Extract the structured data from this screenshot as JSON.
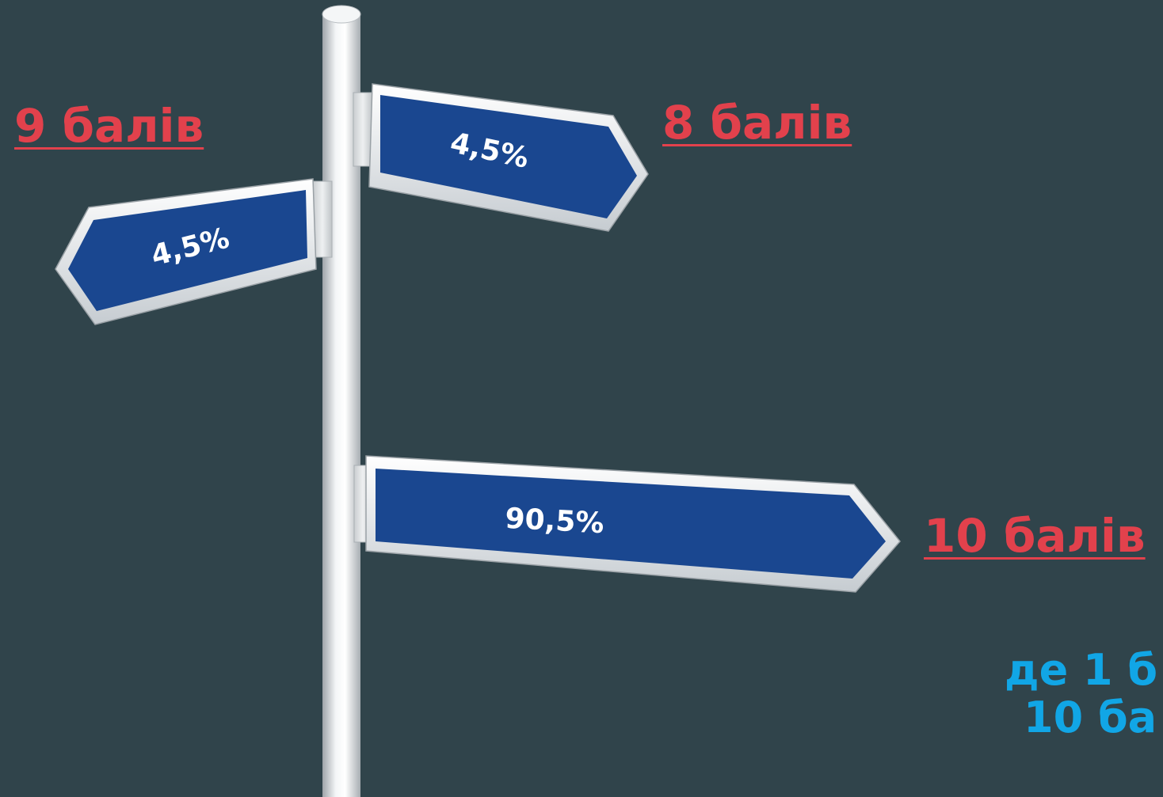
{
  "signs": [
    {
      "value": "4,5%",
      "score": "9 балів",
      "direction": "left"
    },
    {
      "value": "4,5%",
      "score": "8 балів",
      "direction": "right"
    },
    {
      "value": "90,5%",
      "score": "10 балів",
      "direction": "right"
    }
  ],
  "legend": {
    "line1": "де 1 б",
    "line2": "10 ба"
  },
  "colors": {
    "background": "#30444b",
    "sign_fill": "#1a4790",
    "score_text": "#e2414c",
    "legend_text": "#11a6e6"
  }
}
